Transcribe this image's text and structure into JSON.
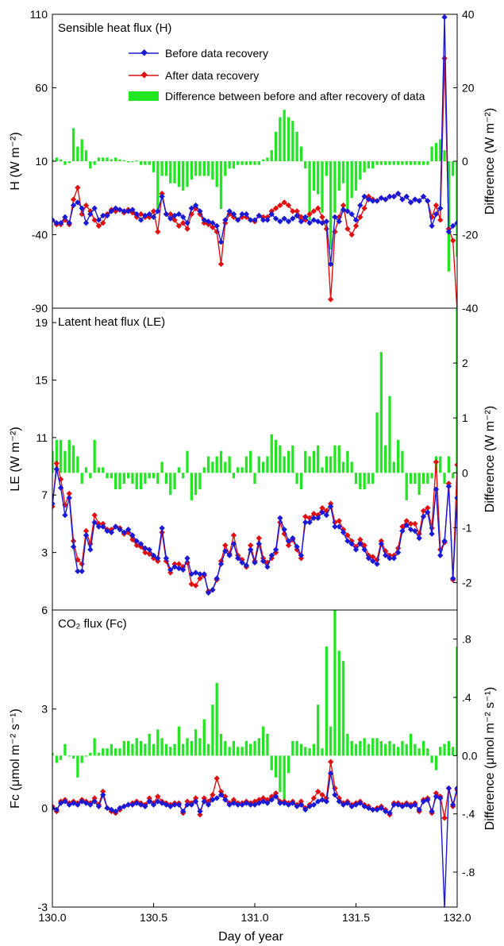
{
  "chart_data": {
    "type": "line",
    "xlabel": "Day of year",
    "xlim": [
      130.0,
      132.0
    ],
    "xticks": [
      "130.0",
      "130.5",
      "131.0",
      "131.5",
      "132.0"
    ],
    "legend": {
      "placement": "top-center",
      "entries": [
        "Before data recovery",
        "After data recovery",
        "Difference between before and after recovery of data"
      ]
    },
    "colors": {
      "before": "#1a1ad6",
      "after": "#e01010",
      "diff": "#22e622"
    },
    "n": 97,
    "panels": [
      {
        "id": "H",
        "title": "Sensible heat flux (H)",
        "ylabel": "H (W m⁻²)",
        "y2label": "Difference (W m⁻²)",
        "ylim": [
          -90,
          110
        ],
        "y2lim": [
          -40,
          40
        ],
        "yticks": [
          "110",
          "60",
          "10",
          "-40",
          "-90"
        ],
        "y2ticks": [
          "40",
          "20",
          "0",
          "-20",
          "-40"
        ],
        "before": [
          -30,
          -32,
          -32,
          -28,
          -32,
          -20,
          -18,
          -22,
          -32,
          -26,
          -22,
          -30,
          -27,
          -27,
          -24,
          -22,
          -23,
          -24,
          -24,
          -23,
          -26,
          -30,
          -27,
          -26,
          -28,
          -24,
          -14,
          -26,
          -29,
          -27,
          -26,
          -28,
          -32,
          -22,
          -20,
          -24,
          -30,
          -31,
          -32,
          -34,
          -45,
          -30,
          -24,
          -26,
          -30,
          -26,
          -26,
          -30,
          -30,
          -27,
          -30,
          -30,
          -26,
          -29,
          -31,
          -29,
          -31,
          -29,
          -27,
          -31,
          -28,
          -32,
          -30,
          -31,
          -32,
          -31,
          -60,
          -28,
          -31,
          -23,
          -24,
          -26,
          -30,
          -20,
          -14,
          -16,
          -17,
          -17,
          -15,
          -16,
          -14,
          -14,
          -12,
          -16,
          -14,
          -18,
          -16,
          -17,
          -14,
          -17,
          -34,
          -26,
          -22,
          108,
          -38,
          -34,
          -32
        ],
        "after": [
          -30,
          -33,
          -33,
          -30,
          -33,
          -16,
          -8,
          -26,
          -20,
          -24,
          -30,
          -34,
          -32,
          -26,
          -23,
          -24,
          -23,
          -25,
          -23,
          -25,
          -28,
          -26,
          -28,
          -28,
          -24,
          -38,
          -12,
          -26,
          -26,
          -30,
          -34,
          -32,
          -36,
          -26,
          -22,
          -26,
          -32,
          -33,
          -35,
          -38,
          -60,
          -32,
          -26,
          -28,
          -30,
          -28,
          -28,
          -30,
          -31,
          -27,
          -28,
          -28,
          -24,
          -22,
          -20,
          -18,
          -20,
          -24,
          -24,
          -28,
          -30,
          -26,
          -24,
          -22,
          -28,
          -36,
          -84,
          -38,
          -28,
          -20,
          -36,
          -40,
          -34,
          -28,
          -22,
          -14,
          -16,
          -17,
          -15,
          -16,
          -14,
          -14,
          -12,
          -16,
          -14,
          -18,
          -16,
          -17,
          -14,
          -17,
          -28,
          -20,
          -30,
          80,
          -36,
          -44,
          -92
        ],
        "diff": [
          0.5,
          1,
          0.5,
          -1,
          -0.5,
          9,
          4,
          6,
          3,
          -2,
          -1,
          1,
          1,
          1,
          0.5,
          1,
          0.5,
          0.3,
          -0.3,
          -0.2,
          0.2,
          -1,
          -1,
          -1,
          -3,
          -13,
          -4,
          -4,
          -6,
          -6,
          -7,
          -8,
          -7,
          -5,
          -4,
          -4,
          -4,
          -4,
          -5,
          -7,
          -13,
          -4,
          -2,
          -2,
          -1,
          -1,
          -1,
          -1,
          -1,
          -1,
          0.5,
          1,
          3,
          8,
          12,
          14,
          12,
          11,
          8,
          4,
          -2,
          -16,
          -8,
          -9,
          -14,
          -4,
          -24,
          -14,
          -8,
          -6,
          -14,
          -10,
          -8,
          -5,
          -3,
          -2,
          -2,
          -1,
          -1,
          -1,
          -1,
          -1,
          -1,
          -1,
          -1,
          -1,
          -1,
          -1,
          -1,
          -1,
          4,
          5,
          6,
          3,
          -30,
          -4,
          -26,
          -40
        ]
      },
      {
        "id": "LE",
        "title": "Latent heat flux (LE)",
        "ylabel": "LE (W m⁻²)",
        "y2label": "Difference (W m⁻²)",
        "ylim": [
          -1,
          20
        ],
        "y2lim": [
          -2.5,
          3
        ],
        "yticks": [
          "19",
          "15",
          "11",
          "7",
          "3"
        ],
        "y2ticks": [
          "2",
          "1",
          "0",
          "-1",
          "-2"
        ],
        "before": [
          6.4,
          8.8,
          7.5,
          5.6,
          6.8,
          3.4,
          1.7,
          1.7,
          4.2,
          3.2,
          5.1,
          4.8,
          4.8,
          4.5,
          4.4,
          4.8,
          4.6,
          4.4,
          4.6,
          4.2,
          3.8,
          3.6,
          3.3,
          3.2,
          2.8,
          2.6,
          4.7,
          2.6,
          1.8,
          2.0,
          1.9,
          1.8,
          2.6,
          1.5,
          1.6,
          1.5,
          1.5,
          0.2,
          0.4,
          1.2,
          2.2,
          3.1,
          2.8,
          3.6,
          2.6,
          2.3,
          2.1,
          3.2,
          2.3,
          3.6,
          2.4,
          2.0,
          2.8,
          3.2,
          5.4,
          4.6,
          3.8,
          4.0,
          3.4,
          2.8,
          5.1,
          5.1,
          5.4,
          5.4,
          5.8,
          5.6,
          6.2,
          4.8,
          4.8,
          4.4,
          3.8,
          3.6,
          3.2,
          3.6,
          3.2,
          2.6,
          2.4,
          2.2,
          3.6,
          2.8,
          2.6,
          2.6,
          3.0,
          4.5,
          4.9,
          4.6,
          4.5,
          4.0,
          5.5,
          5.8,
          4.3,
          7.4,
          2.8,
          3.8,
          7.6,
          1.2,
          6.8
        ],
        "after": [
          6.2,
          9.2,
          8.1,
          6.3,
          7.1,
          3.8,
          2.5,
          2.2,
          4.5,
          3.6,
          5.6,
          5.0,
          5.0,
          4.6,
          4.6,
          4.8,
          4.7,
          4.3,
          4.4,
          3.9,
          3.5,
          3.4,
          3.0,
          2.9,
          2.6,
          2.4,
          4.4,
          2.4,
          1.6,
          2.2,
          2.2,
          2.0,
          2.3,
          0.8,
          0.7,
          1.2,
          1.4,
          0.3,
          0.4,
          1.1,
          2.4,
          3.5,
          2.9,
          4.2,
          2.8,
          2.5,
          2.0,
          3.5,
          2.4,
          4.0,
          2.6,
          2.3,
          2.6,
          3.0,
          5.1,
          4.3,
          3.5,
          3.9,
          3.2,
          2.6,
          5.5,
          5.4,
          5.7,
          5.6,
          6.1,
          5.9,
          6.4,
          5.1,
          5.2,
          4.6,
          4.2,
          3.8,
          3.4,
          3.9,
          3.5,
          2.8,
          2.7,
          2.5,
          3.8,
          3.1,
          2.8,
          2.8,
          3.3,
          4.8,
          5.2,
          5.0,
          5.0,
          4.3,
          5.9,
          6.1,
          4.7,
          9.3,
          3.2,
          3.7,
          7.8,
          1.1,
          9.1
        ],
        "diff": [
          0.4,
          0.6,
          0.6,
          0.4,
          0.6,
          0.5,
          0.3,
          -0.2,
          0.1,
          -0.1,
          0.6,
          0.1,
          0.1,
          -0.1,
          -0.1,
          -0.3,
          -0.3,
          -0.2,
          -0.1,
          -0.2,
          -0.3,
          -0.3,
          -0.2,
          -0.1,
          -0.1,
          -0.2,
          0.2,
          -0.2,
          -0.4,
          -0.3,
          0.1,
          -0.1,
          0.4,
          -0.5,
          -0.4,
          -0.3,
          0.1,
          0.3,
          0.2,
          0.3,
          0.4,
          0.2,
          0.3,
          -0.1,
          0.1,
          0.1,
          0.3,
          0.4,
          -0.2,
          0.3,
          0.2,
          0.3,
          0.7,
          0.6,
          0.5,
          0.3,
          0.4,
          0.5,
          -0.2,
          -0.3,
          0.4,
          0.3,
          0.4,
          0.5,
          0.1,
          0.3,
          0.3,
          0.5,
          0.5,
          0.2,
          0.4,
          0.2,
          -0.2,
          -0.3,
          -0.3,
          -0.2,
          -0.2,
          1.1,
          2.2,
          0.5,
          1.4,
          0.2,
          0.6,
          0.4,
          -0.5,
          -0.2,
          -0.2,
          -0.4,
          -0.2,
          -0.2,
          -0.1,
          0.3,
          0.3,
          -0.2,
          0.3,
          -0.1,
          3.2
        ]
      },
      {
        "id": "Fc",
        "title": "CO₂ flux (Fc)",
        "ylabel": "Fc (μmol m⁻² s⁻¹)",
        "y2label": "Difference (μmol m⁻² s⁻¹)",
        "ylim": [
          -3,
          6
        ],
        "y2lim": [
          -1.04,
          1
        ],
        "yticks": [
          "6",
          "3",
          "0",
          "-3"
        ],
        "y2ticks": [
          ".8",
          ".4",
          "0.0",
          "-.4",
          "-.8"
        ],
        "y2tick_values": [
          0.8,
          0.4,
          0.0,
          -0.4,
          -0.8
        ],
        "before": [
          0.0,
          -0.05,
          0.15,
          0.2,
          0.1,
          0.15,
          0.1,
          0.2,
          0.15,
          0.1,
          0.2,
          0.05,
          0.4,
          0.0,
          -0.05,
          -0.1,
          0.0,
          0.05,
          0.1,
          0.1,
          0.15,
          0.1,
          0.05,
          0.2,
          0.1,
          0.2,
          0.15,
          0.1,
          0.05,
          0.1,
          0.1,
          -0.1,
          0.1,
          0.1,
          0.2,
          -0.1,
          0.2,
          0.1,
          0.25,
          0.3,
          0.4,
          0.25,
          0.1,
          0.15,
          0.1,
          0.1,
          0.15,
          0.1,
          0.1,
          0.15,
          0.2,
          0.15,
          0.25,
          0.35,
          0.15,
          0.15,
          0.1,
          0.15,
          0.05,
          0.1,
          -0.05,
          0.05,
          0.1,
          0.2,
          0.25,
          0.2,
          1.05,
          0.4,
          0.2,
          0.1,
          0.15,
          0.05,
          0.1,
          0.15,
          0.05,
          0.0,
          -0.05,
          -0.05,
          0.0,
          -0.1,
          -0.15,
          0.1,
          0.1,
          0.05,
          0.1,
          0.05,
          0.1,
          -0.05,
          0.2,
          0.25,
          -0.1,
          0.35,
          0.3,
          -3.05,
          0.6,
          0.1,
          0.6
        ],
        "after": [
          0.05,
          -0.1,
          0.2,
          0.25,
          0.15,
          0.2,
          0.15,
          0.25,
          0.2,
          0.15,
          0.3,
          0.1,
          0.5,
          0.0,
          -0.1,
          -0.15,
          -0.05,
          0.05,
          0.1,
          0.15,
          0.2,
          0.15,
          0.1,
          0.3,
          0.15,
          0.35,
          0.2,
          0.15,
          0.1,
          0.15,
          0.15,
          -0.15,
          0.2,
          0.15,
          0.3,
          -0.2,
          0.3,
          0.2,
          0.4,
          0.9,
          0.5,
          0.35,
          0.15,
          0.25,
          0.15,
          0.15,
          0.2,
          0.15,
          0.2,
          0.25,
          0.3,
          0.25,
          0.35,
          0.45,
          0.2,
          0.2,
          0.15,
          0.2,
          0.1,
          0.2,
          0.0,
          0.1,
          0.3,
          0.5,
          0.4,
          0.3,
          1.4,
          0.6,
          0.3,
          0.15,
          0.2,
          0.1,
          0.15,
          0.2,
          0.1,
          0.05,
          -0.05,
          0.0,
          0.05,
          -0.05,
          -0.2,
          0.15,
          0.15,
          0.1,
          0.15,
          0.1,
          0.15,
          -0.1,
          0.25,
          0.3,
          -0.15,
          0.45,
          0.35,
          -0.3,
          0.6,
          0.05,
          0.55
        ],
        "diff": [
          0.02,
          -0.05,
          -0.03,
          0.08,
          0.0,
          -0.02,
          -0.15,
          -0.05,
          0.0,
          0.02,
          0.12,
          0.02,
          0.05,
          0.05,
          0.08,
          0.05,
          0.05,
          0.1,
          0.1,
          0.08,
          0.12,
          0.1,
          0.08,
          0.15,
          0.08,
          0.18,
          0.12,
          0.08,
          0.06,
          0.08,
          0.2,
          0.08,
          0.12,
          0.1,
          0.18,
          0.12,
          0.25,
          0.08,
          0.35,
          0.5,
          0.15,
          0.1,
          0.06,
          0.1,
          0.06,
          0.06,
          0.1,
          0.08,
          0.1,
          0.12,
          0.2,
          0.15,
          -0.1,
          -0.15,
          -0.25,
          -0.3,
          -0.12,
          0.1,
          0.1,
          0.08,
          0.06,
          0.05,
          0.08,
          0.35,
          0.05,
          0.75,
          0.2,
          1.0,
          0.72,
          0.65,
          0.15,
          0.1,
          0.08,
          0.1,
          0.12,
          0.08,
          0.12,
          0.12,
          0.1,
          0.08,
          0.1,
          0.08,
          0.06,
          0.1,
          0.08,
          0.15,
          0.08,
          0.05,
          0.1,
          0.05,
          -0.05,
          -0.1,
          0.06,
          0.08,
          0.1,
          0.06,
          0.75
        ]
      }
    ]
  }
}
